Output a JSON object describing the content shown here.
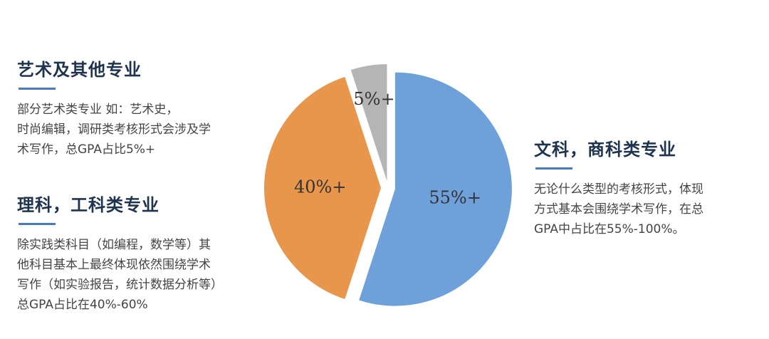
{
  "chart_data": {
    "type": "pie",
    "values": [
      55,
      40,
      5
    ],
    "value_labels": [
      "55%+",
      "40%+",
      "5%+"
    ],
    "colors": [
      "#6ea0da",
      "#e8964b",
      "#b5b5b5"
    ]
  },
  "panels": [
    {
      "title": "艺术及其他专业",
      "lines": [
        "部分艺术类专业 如：艺术史，",
        "时尚编辑，调研类考核形式会涉及学",
        "术写作，总GPA占比5%+"
      ]
    },
    {
      "title": "理科，工科类专业",
      "lines": [
        "除实践类科目（如编程，数学等）其",
        "他科目基本上最终体现依然围绕学术",
        "写作（如实验报告，统计数据分析等）",
        "总GPA占比在40%-60%"
      ]
    },
    {
      "title": "文科，商科类专业",
      "lines": [
        "无论什么类型的考核形式，体现",
        "方式基本会围绕学术写作，在总",
        "GPA中占比在55%-100%。"
      ]
    }
  ]
}
